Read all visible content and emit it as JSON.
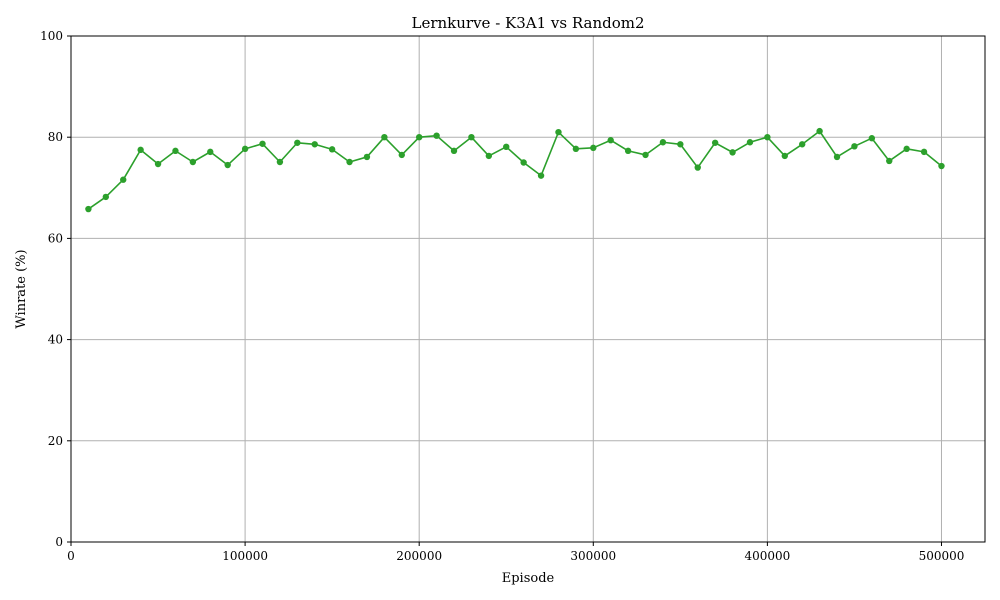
{
  "chart_data": {
    "type": "line",
    "title": "Lernkurve - K3A1 vs Random2",
    "xlabel": "Episode",
    "ylabel": "Winrate (%)",
    "xlim": [
      0,
      525000
    ],
    "ylim": [
      0,
      100
    ],
    "xticks": [
      0,
      100000,
      200000,
      300000,
      400000,
      500000
    ],
    "xtick_labels": [
      "0",
      "100000",
      "200000",
      "300000",
      "400000",
      "500000"
    ],
    "yticks": [
      0,
      20,
      40,
      60,
      80,
      100
    ],
    "ytick_labels": [
      "0",
      "20",
      "40",
      "60",
      "80",
      "100"
    ],
    "grid": true,
    "color": "#2ca02c",
    "series": [
      {
        "x": [
          10000,
          20000,
          30000,
          40000,
          50000,
          60000,
          70000,
          80000,
          90000,
          100000,
          110000,
          120000,
          130000,
          140000,
          150000,
          160000,
          170000,
          180000,
          190000,
          200000,
          210000,
          220000,
          230000,
          240000,
          250000,
          260000,
          270000,
          280000,
          290000,
          300000,
          310000,
          320000,
          330000,
          340000,
          350000,
          360000,
          370000,
          380000,
          390000,
          400000,
          410000,
          420000,
          430000,
          440000,
          450000,
          460000,
          470000,
          480000,
          490000,
          500000
        ],
        "y": [
          65.8,
          68.2,
          71.6,
          77.5,
          74.7,
          77.3,
          75.1,
          77.1,
          74.5,
          77.7,
          78.7,
          75.1,
          78.9,
          78.6,
          77.6,
          75.1,
          76.1,
          80.0,
          76.5,
          80.0,
          80.3,
          77.3,
          80.0,
          76.3,
          78.1,
          75.0,
          72.4,
          81.0,
          77.7,
          77.9,
          79.4,
          77.3,
          76.5,
          79.0,
          78.6,
          74.0,
          78.9,
          77.0,
          79.0,
          80.0,
          76.3,
          78.6,
          81.2,
          76.1,
          78.2,
          79.8,
          75.3,
          77.7,
          77.1,
          74.3
        ]
      }
    ]
  }
}
